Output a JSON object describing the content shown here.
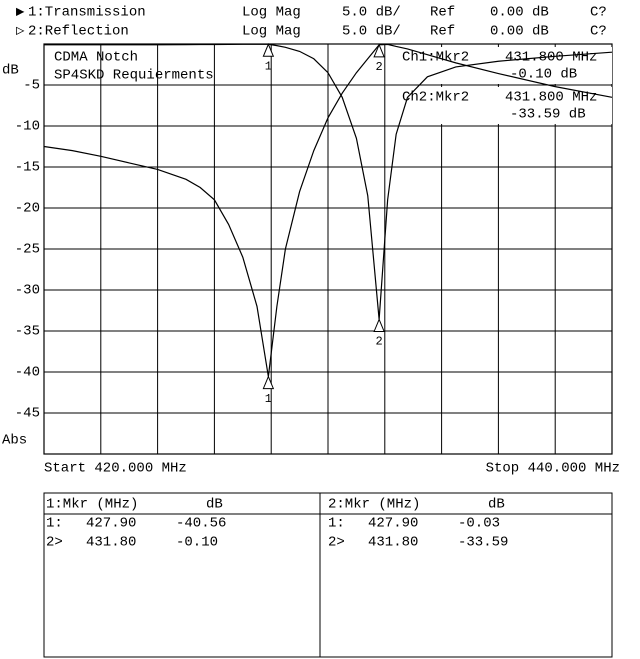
{
  "chart_data": {
    "type": "line",
    "y_label": "dB",
    "y_unit_label": "Abs",
    "annotations": [
      "CDMA Notch",
      "SP4SKD Requierments"
    ],
    "marker_readouts": [
      [
        "Ch1:Mkr2",
        "431.800 MHz",
        "-0.10 dB"
      ],
      [
        "Ch2:Mkr2",
        "431.800 MHz",
        "-33.59 dB"
      ]
    ],
    "start_label": "Start 420.000 MHz",
    "stop_label": "Stop 440.000 MHz",
    "xlim": [
      420,
      440
    ],
    "ylim": [
      -50,
      0
    ],
    "yticks": [
      -5,
      -10,
      -15,
      -20,
      -25,
      -30,
      -35,
      -40,
      -45
    ],
    "grid": true,
    "x": [
      420,
      421,
      422,
      423,
      424,
      425,
      425.5,
      426,
      426.5,
      427,
      427.5,
      427.9,
      428.2,
      428.5,
      429,
      429.5,
      430,
      430.5,
      431,
      431.4,
      431.8,
      432.1,
      432.4,
      432.8,
      433.5,
      434.5,
      436,
      438,
      440
    ],
    "markers": [
      {
        "label": "1",
        "index": 11
      },
      {
        "label": "2",
        "index": 20
      }
    ],
    "series": [
      {
        "name": "1:Transmission",
        "pointer": "▶",
        "format": "Log Mag",
        "scale": "5.0 dB/",
        "ref": "Ref",
        "ref_value": "0.00 dB",
        "cal": "C?",
        "color": "#000000",
        "values": [
          -12.5,
          -13,
          -13.7,
          -14.5,
          -15.3,
          -16.5,
          -17.5,
          -19,
          -22,
          -26,
          -32,
          -40.56,
          -32,
          -25,
          -18,
          -13,
          -9,
          -6,
          -3.5,
          -1.8,
          -0.1,
          -0.05,
          -0.3,
          -0.6,
          -1.3,
          -2.3,
          -3.6,
          -5.2,
          -6.5
        ]
      },
      {
        "name": "2:Reflection",
        "pointer": "▷",
        "format": "Log Mag",
        "scale": "5.0 dB/",
        "ref": "Ref",
        "ref_value": "0.00 dB",
        "cal": "C?",
        "color": "#000000",
        "values": [
          -0.1,
          -0.1,
          -0.1,
          -0.1,
          -0.1,
          -0.08,
          -0.07,
          -0.06,
          -0.05,
          -0.04,
          -0.03,
          -0.03,
          -0.2,
          -0.4,
          -0.9,
          -1.8,
          -3.5,
          -6.5,
          -11.5,
          -18.5,
          -33.59,
          -19,
          -11,
          -6.5,
          -4,
          -2.8,
          -2.1,
          -1.5,
          -1.0
        ]
      }
    ]
  },
  "table": {
    "panels": [
      {
        "header": [
          "1:Mkr (MHz)",
          "dB"
        ],
        "rows": [
          [
            "1:",
            "427.90",
            "-40.56"
          ],
          [
            "2>",
            "431.80",
            "-0.10"
          ]
        ]
      },
      {
        "header": [
          "2:Mkr (MHz)",
          "dB"
        ],
        "rows": [
          [
            "1:",
            "427.90",
            "-0.03"
          ],
          [
            "2>",
            "431.80",
            "-33.59"
          ]
        ]
      }
    ]
  }
}
